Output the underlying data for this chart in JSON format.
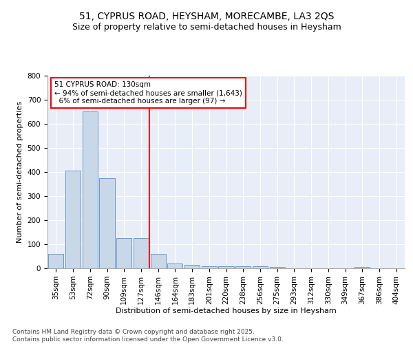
{
  "title1": "51, CYPRUS ROAD, HEYSHAM, MORECAMBE, LA3 2QS",
  "title2": "Size of property relative to semi-detached houses in Heysham",
  "xlabel": "Distribution of semi-detached houses by size in Heysham",
  "ylabel": "Number of semi-detached properties",
  "categories": [
    "35sqm",
    "53sqm",
    "72sqm",
    "90sqm",
    "109sqm",
    "127sqm",
    "146sqm",
    "164sqm",
    "183sqm",
    "201sqm",
    "220sqm",
    "238sqm",
    "256sqm",
    "275sqm",
    "293sqm",
    "312sqm",
    "330sqm",
    "349sqm",
    "367sqm",
    "386sqm",
    "404sqm"
  ],
  "values": [
    60,
    405,
    650,
    375,
    125,
    125,
    60,
    20,
    15,
    10,
    10,
    10,
    10,
    5,
    0,
    0,
    0,
    0,
    5,
    0,
    0
  ],
  "bar_color": "#c8d8e8",
  "bar_edge_color": "#5a8fc0",
  "vline_x_idx": 5.5,
  "vline_color": "red",
  "annotation_text": "51 CYPRUS ROAD: 130sqm\n← 94% of semi-detached houses are smaller (1,643)\n  6% of semi-detached houses are larger (97) →",
  "ylim": [
    0,
    800
  ],
  "yticks": [
    0,
    100,
    200,
    300,
    400,
    500,
    600,
    700,
    800
  ],
  "background_color": "#e8eef8",
  "footer": "Contains HM Land Registry data © Crown copyright and database right 2025.\nContains public sector information licensed under the Open Government Licence v3.0.",
  "title1_fontsize": 10,
  "title2_fontsize": 9,
  "axis_label_fontsize": 8,
  "tick_fontsize": 7.5,
  "annotation_fontsize": 7.5,
  "footer_fontsize": 6.5
}
